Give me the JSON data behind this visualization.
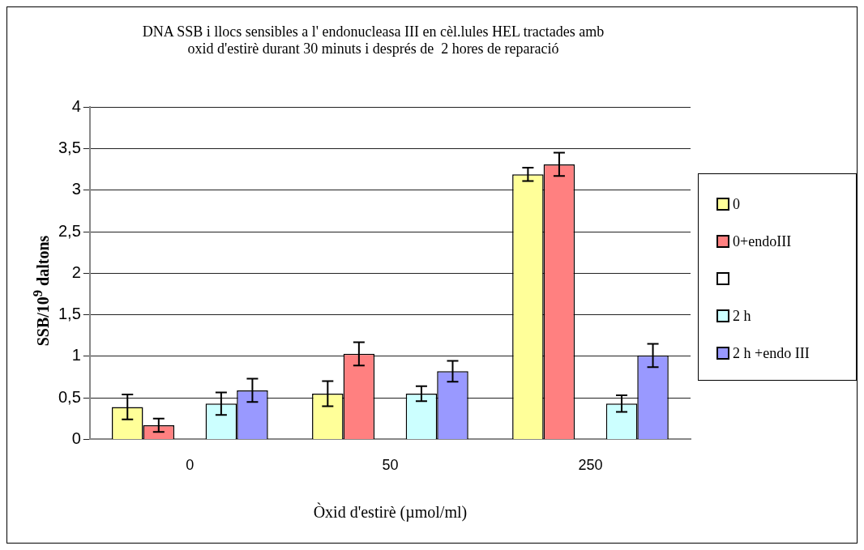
{
  "chart_data": {
    "type": "bar",
    "title": "DNA SSB i llocs sensibles a l' endonucleasa III en cèl.lules HEL tractades amb\noxid d'estirè durant 30 minuts i després de  2 hores de reparació",
    "xlabel": "Òxid d'estirè (µmol/ml)",
    "ylabel": "SSB/10$^{9}$ daltons",
    "categories": [
      "0",
      "50",
      "250"
    ],
    "series": [
      {
        "name": "0",
        "color": "#ffff99",
        "values": [
          0.39,
          0.55,
          3.19
        ],
        "errors": [
          0.15,
          0.15,
          0.08
        ]
      },
      {
        "name": "0+endoIII",
        "color": "#ff8080",
        "values": [
          0.17,
          1.03,
          3.31
        ],
        "errors": [
          0.08,
          0.14,
          0.14
        ]
      },
      {
        "color": "#ffffff",
        "values": [
          null,
          null,
          null
        ]
      },
      {
        "name": "2 h",
        "color": "#ccffff",
        "values": [
          0.43,
          0.55,
          0.43
        ],
        "errors": [
          0.135,
          0.09,
          0.1
        ]
      },
      {
        "name": "2 h +endo III",
        "color": "#9999ff",
        "values": [
          0.59,
          0.82,
          1.01
        ],
        "errors": [
          0.14,
          0.125,
          0.14
        ]
      }
    ],
    "ylim": [
      0,
      4
    ],
    "yticks": [
      0,
      {
        "value": 0.5,
        "label": "0,5"
      },
      1,
      {
        "value": 1.5,
        "label": "1,5"
      },
      2,
      {
        "value": 2.5,
        "label": "2,5"
      },
      3,
      {
        "value": 3.5,
        "label": "3,5"
      },
      4
    ],
    "grid": "y",
    "legend": "right"
  }
}
